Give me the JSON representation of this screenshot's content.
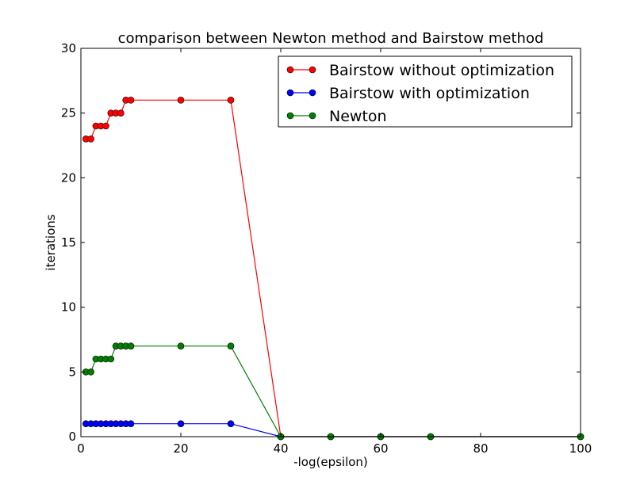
{
  "chart_data": {
    "type": "line",
    "title": "comparison between Newton method and Bairstow method",
    "xlabel": "-log(epsilon)",
    "ylabel": "iterations",
    "xlim": [
      0,
      100
    ],
    "ylim": [
      0,
      30
    ],
    "xticks": [
      "0",
      "20",
      "40",
      "60",
      "80",
      "100"
    ],
    "yticks": [
      "0",
      "5",
      "10",
      "15",
      "20",
      "25",
      "30"
    ],
    "grid": false,
    "legend_position": "top-right",
    "x": [
      1,
      2,
      3,
      4,
      5,
      6,
      7,
      8,
      9,
      10,
      20,
      30,
      40,
      50,
      60,
      70,
      100
    ],
    "series": [
      {
        "name": "Bairstow without optimization",
        "color": "#ff0000",
        "marker": "circle",
        "values": [
          23,
          23,
          24,
          24,
          24,
          25,
          25,
          25,
          26,
          26,
          26,
          26,
          0,
          0,
          0,
          0,
          0
        ]
      },
      {
        "name": "Bairstow with optimization",
        "color": "#0000ff",
        "marker": "circle",
        "values": [
          1,
          1,
          1,
          1,
          1,
          1,
          1,
          1,
          1,
          1,
          1,
          1,
          0,
          0,
          0,
          0,
          0
        ]
      },
      {
        "name": "Newton",
        "color": "#008000",
        "marker": "circle",
        "values": [
          5,
          5,
          6,
          6,
          6,
          6,
          7,
          7,
          7,
          7,
          7,
          7,
          0,
          0,
          0,
          0,
          0
        ]
      }
    ]
  }
}
